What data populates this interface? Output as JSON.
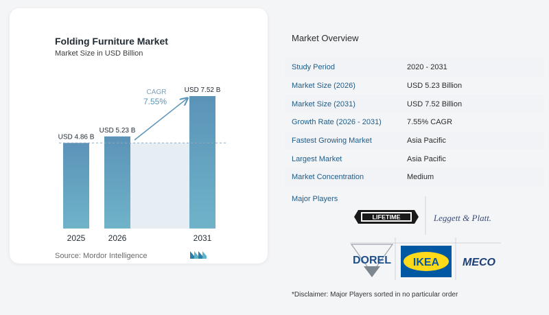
{
  "chart_data": {
    "type": "bar",
    "title": "Folding Furniture Market",
    "subtitle": "Market Size in USD Billion",
    "categories": [
      "2025",
      "2026",
      "2031"
    ],
    "values": [
      4.86,
      5.23,
      7.52
    ],
    "data_labels": [
      "USD 4.86 B",
      "USD 5.23 B",
      "USD 7.52 B"
    ],
    "annotation": {
      "label": "CAGR",
      "value": "7.55%"
    },
    "ylim": [
      0,
      7.52
    ],
    "reference_line": 4.86,
    "bar_color": "#5b93b8",
    "shade_color": "#e6edf3",
    "grid": false
  },
  "source": "Source:  Mordor Intelligence",
  "overview": {
    "title": "Market Overview",
    "rows": [
      {
        "label": "Study Period",
        "value": "2020 - 2031"
      },
      {
        "label": "Market Size (2026)",
        "value": "USD 5.23 Billion"
      },
      {
        "label": "Market Size (2031)",
        "value": "USD 7.52 Billion"
      },
      {
        "label": "Growth Rate (2026 - 2031)",
        "value": "7.55% CAGR"
      },
      {
        "label": "Fastest Growing Market",
        "value": "Asia Pacific"
      },
      {
        "label": "Largest Market",
        "value": "Asia Pacific"
      },
      {
        "label": "Market Concentration",
        "value": "Medium"
      }
    ]
  },
  "players": {
    "title": "Major Players",
    "logos": [
      "LIFETIME",
      "Leggett & Platt.",
      "DOREL",
      "IKEA",
      "MECO"
    ]
  },
  "disclaimer": "*Disclaimer: Major Players sorted in no particular order"
}
